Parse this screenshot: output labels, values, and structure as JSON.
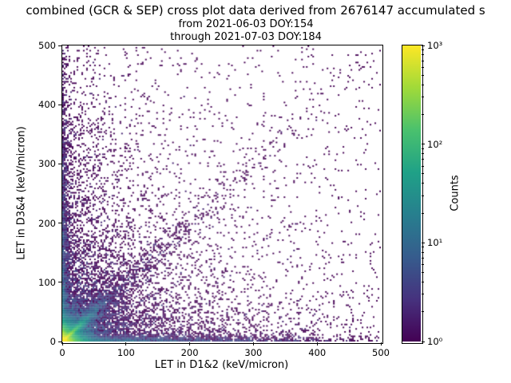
{
  "chart_data": {
    "type": "scatter",
    "subtype": "2d-histogram density cross plot with log-scaled counts colormap",
    "title": [
      "combined (GCR & SEP) cross plot data derived from 2676147 accumulated s",
      "from 2021-06-03 DOY:154",
      "through 2021-07-03 DOY:184"
    ],
    "xlabel": "LET in D1&2 (keV/micron)",
    "ylabel": "LET in D3&4 (keV/micron)",
    "xlim": [
      0,
      500
    ],
    "ylim": [
      0,
      500
    ],
    "x_ticks": [
      0,
      100,
      200,
      300,
      400,
      500
    ],
    "y_ticks": [
      0,
      100,
      200,
      300,
      400,
      500
    ],
    "grid": false,
    "legend": "none",
    "colorbar": {
      "label": "Counts",
      "scale": "log",
      "range": [
        1,
        1000
      ],
      "tick_values": [
        1,
        10,
        100,
        1000
      ],
      "tick_labels": [
        "10⁰",
        "10¹",
        "10²",
        "10³"
      ],
      "colormap": "viridis",
      "colormap_stops": [
        "#440154",
        "#46327e",
        "#365c8d",
        "#277f8e",
        "#1fa187",
        "#4ac16d",
        "#a0da39",
        "#fde725"
      ]
    },
    "density_model": {
      "description": "Synthesized approximation of the observed point cloud: very dense bright (yellow/green) core and tight diagonal streak at the origin, faint radial rays at low LET, a horizontal band along y≈0 and vertical band along x≈0, a sparse y≈x correlation band, and sparse dark-purple background scatter across the plane.",
      "seed": 42,
      "bins": 200,
      "components": [
        {
          "name": "origin-core",
          "kind": "exp2d",
          "n": 26000,
          "sx": 9,
          "sy": 9
        },
        {
          "name": "low-let-diagonal-streak",
          "kind": "diag_exp",
          "n": 9000,
          "scale": 16,
          "jitter": 0.12
        },
        {
          "name": "low-let-rays",
          "kind": "rays",
          "slopes": [
            0.27,
            0.4,
            0.55,
            0.75,
            1.0,
            1.35,
            1.85,
            2.5,
            3.7
          ],
          "n_per": 450,
          "scale": 40,
          "jitter": 2.5
        },
        {
          "name": "horizontal-band",
          "kind": "exp2d",
          "n": 2600,
          "sx": 130,
          "sy": 4.5
        },
        {
          "name": "vertical-band",
          "kind": "exp2d",
          "n": 2200,
          "sx": 4.5,
          "sy": 130
        },
        {
          "name": "left-fan",
          "kind": "exp2d",
          "n": 1800,
          "sx": 40,
          "sy": 170
        },
        {
          "name": "bottom-fan",
          "kind": "exp2d",
          "n": 1200,
          "sx": 170,
          "sy": 40
        },
        {
          "name": "yx-correlation-band",
          "kind": "diag_band",
          "n": 800,
          "t0": 20,
          "scale": 140,
          "sigma": 12
        },
        {
          "name": "background-decay",
          "kind": "exp2d",
          "n": 3000,
          "sx": 150,
          "sy": 150
        },
        {
          "name": "background-uniform",
          "kind": "uniform",
          "n": 700
        }
      ]
    }
  }
}
